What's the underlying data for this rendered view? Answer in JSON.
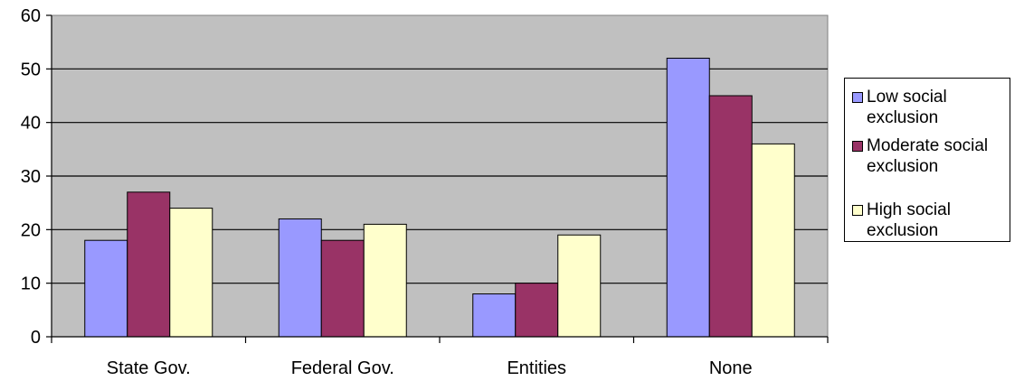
{
  "chart_data": {
    "type": "bar",
    "title": "",
    "xlabel": "",
    "ylabel": "",
    "categories": [
      "State Gov.",
      "Federal Gov.",
      "Entities",
      "None"
    ],
    "series": [
      {
        "name": "Low social exclusion",
        "values": [
          18,
          22,
          8,
          52
        ],
        "color": "#9999ff"
      },
      {
        "name": "Moderate social exclusion",
        "values": [
          27,
          18,
          10,
          45
        ],
        "color": "#993366"
      },
      {
        "name": "High social exclusion",
        "values": [
          24,
          21,
          19,
          36
        ],
        "color": "#ffffcc"
      }
    ],
    "ylim": [
      0,
      60
    ],
    "yticks": [
      0,
      10,
      20,
      30,
      40,
      50,
      60
    ],
    "grid": true,
    "plot_background": "#c0c0c0",
    "legend_position": "right"
  }
}
